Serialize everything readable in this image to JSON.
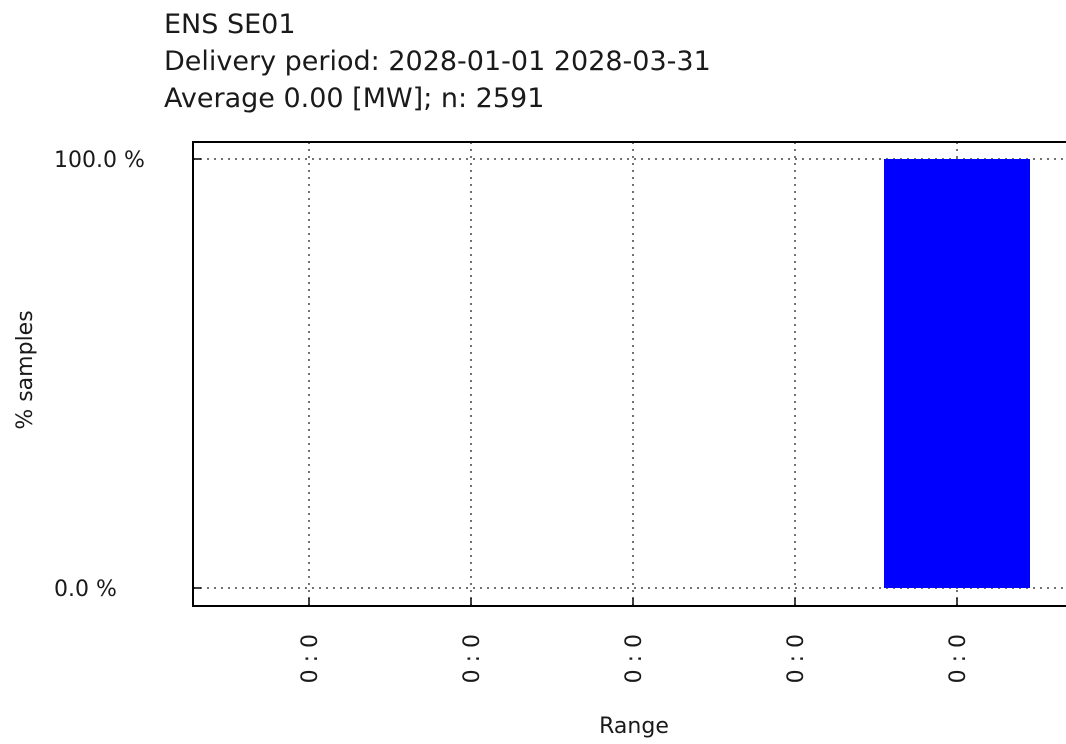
{
  "chart_data": {
    "type": "bar",
    "title_lines": [
      "ENS SE01",
      "Delivery period: 2028-01-01 2028-03-31",
      "Average 0.00 [MW]; n: 2591"
    ],
    "xlabel": "Range",
    "ylabel": "% samples",
    "categories": [
      "0 : 0",
      "0 : 0",
      "0 : 0",
      "0 : 0",
      "0 : 0"
    ],
    "values": [
      0,
      0,
      0,
      0,
      100
    ],
    "ylim": [
      0,
      100
    ],
    "yticks": [
      {
        "value": 0,
        "label": "0.0 %"
      },
      {
        "value": 100,
        "label": "100.0 %"
      }
    ],
    "grid": true,
    "bar_color": "#0000ff"
  }
}
